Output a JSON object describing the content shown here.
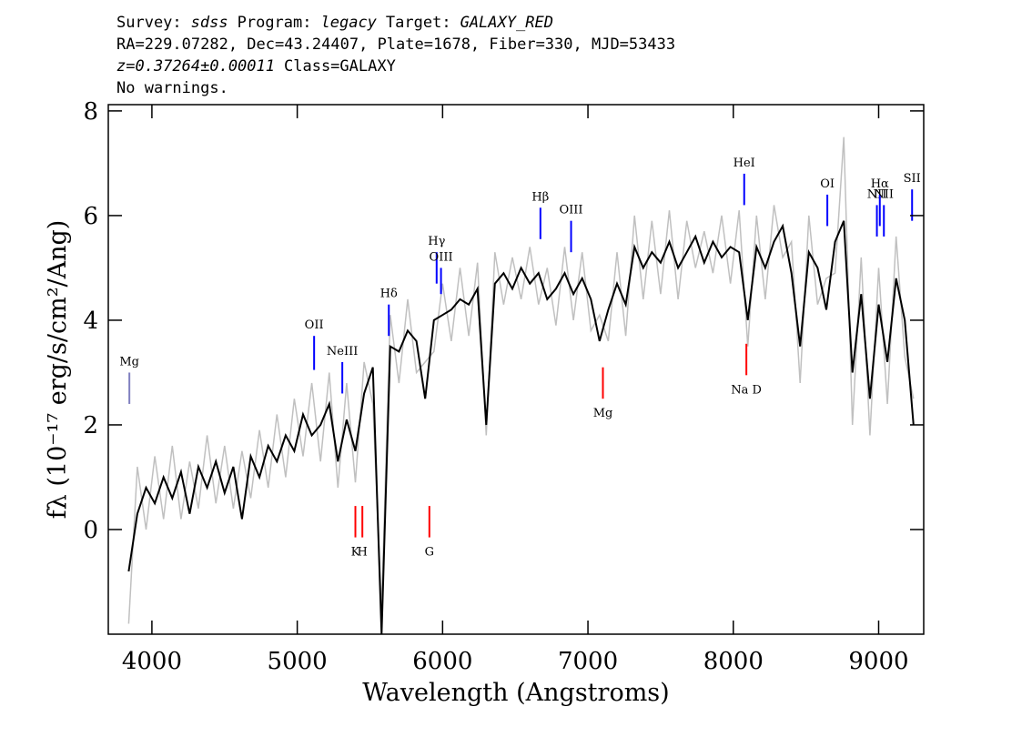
{
  "chart_data": {
    "type": "line",
    "header": [
      {
        "parts": [
          "Survey:",
          "sdss",
          "Program:",
          "legacy",
          "Target:",
          "GALAXY_RED"
        ],
        "italic": [
          false,
          true,
          false,
          true,
          false,
          true
        ]
      },
      {
        "parts": [
          "RA=229.07282, Dec=43.24407, Plate=1678, Fiber=330, MJD=53433"
        ],
        "italic": [
          false
        ]
      },
      {
        "parts": [
          "z=0.37264±0.00011",
          "Class=GALAXY"
        ],
        "italic": [
          true,
          false
        ]
      },
      {
        "parts": [
          "No warnings."
        ],
        "italic": [
          false
        ]
      }
    ],
    "xlabel": "Wavelength (Angstroms)",
    "ylabel": "fλ (10⁻¹⁷ erg/s/cm²/Ang)",
    "xlim": [
      3700,
      9310
    ],
    "ylim": [
      -2,
      8.12
    ],
    "xticks": [
      4000,
      5000,
      6000,
      7000,
      8000,
      9000
    ],
    "yticks": [
      0,
      2,
      4,
      6,
      8
    ],
    "x": [
      3840,
      3900,
      3960,
      4020,
      4080,
      4140,
      4200,
      4260,
      4320,
      4380,
      4440,
      4500,
      4560,
      4620,
      4680,
      4740,
      4800,
      4860,
      4920,
      4980,
      5040,
      5100,
      5160,
      5220,
      5280,
      5340,
      5400,
      5460,
      5520,
      5580,
      5640,
      5700,
      5760,
      5820,
      5880,
      5940,
      6000,
      6060,
      6120,
      6180,
      6240,
      6300,
      6360,
      6420,
      6480,
      6540,
      6600,
      6660,
      6720,
      6780,
      6840,
      6900,
      6960,
      7020,
      7080,
      7140,
      7200,
      7260,
      7320,
      7380,
      7440,
      7500,
      7560,
      7620,
      7680,
      7740,
      7800,
      7860,
      7920,
      7980,
      8040,
      8100,
      8160,
      8220,
      8280,
      8340,
      8400,
      8460,
      8520,
      8580,
      8640,
      8700,
      8760,
      8820,
      8880,
      8940,
      9000,
      9060,
      9120,
      9180,
      9240
    ],
    "series": [
      {
        "color": "#c0c0c0",
        "values": [
          -1.8,
          1.2,
          0.0,
          1.4,
          0.2,
          1.6,
          0.2,
          1.3,
          0.4,
          1.8,
          0.5,
          1.6,
          0.4,
          1.5,
          0.6,
          1.9,
          0.8,
          2.2,
          1.0,
          2.5,
          1.4,
          2.8,
          1.3,
          3.0,
          0.8,
          2.8,
          0.9,
          3.2,
          2.4,
          -1.5,
          4.1,
          2.8,
          4.4,
          3.0,
          3.2,
          3.4,
          4.7,
          3.6,
          5.0,
          3.7,
          5.1,
          1.8,
          5.3,
          4.3,
          5.2,
          4.4,
          5.4,
          4.3,
          5.0,
          3.9,
          5.4,
          4.0,
          5.3,
          3.8,
          4.1,
          3.6,
          5.3,
          3.7,
          6.0,
          4.4,
          5.9,
          4.5,
          6.1,
          4.4,
          5.9,
          5.0,
          5.7,
          4.9,
          6.0,
          4.7,
          6.1,
          3.5,
          6.0,
          4.4,
          6.2,
          5.2,
          5.5,
          2.8,
          6.0,
          4.3,
          4.8,
          4.9,
          7.5,
          2.0,
          5.2,
          1.8,
          5.0,
          2.4,
          5.6,
          3.3,
          2.5
        ]
      },
      {
        "color": "#000000",
        "values": [
          -0.8,
          0.3,
          0.8,
          0.5,
          1.0,
          0.6,
          1.1,
          0.3,
          1.2,
          0.8,
          1.3,
          0.7,
          1.2,
          0.2,
          1.4,
          1.0,
          1.6,
          1.3,
          1.8,
          1.5,
          2.2,
          1.8,
          2.0,
          2.4,
          1.3,
          2.1,
          1.5,
          2.6,
          3.1,
          -2.0,
          3.5,
          3.4,
          3.8,
          3.6,
          2.5,
          4.0,
          4.1,
          4.2,
          4.4,
          4.3,
          4.6,
          2.0,
          4.7,
          4.9,
          4.6,
          5.0,
          4.7,
          4.9,
          4.4,
          4.6,
          4.9,
          4.5,
          4.8,
          4.4,
          3.6,
          4.2,
          4.7,
          4.3,
          5.4,
          5.0,
          5.3,
          5.1,
          5.5,
          5.0,
          5.3,
          5.6,
          5.1,
          5.5,
          5.2,
          5.4,
          5.3,
          4.0,
          5.4,
          5.0,
          5.5,
          5.8,
          4.9,
          3.5,
          5.3,
          5.0,
          4.2,
          5.5,
          5.9,
          3.0,
          4.5,
          2.5,
          4.3,
          3.2,
          4.8,
          4.0,
          2.0
        ]
      }
    ],
    "lines": [
      {
        "label": "Mg",
        "wavelength": 3845,
        "color": "#8080c0",
        "ymin": 2.4,
        "ymax": 3.0
      },
      {
        "label": "OII",
        "wavelength": 5116,
        "color": "#0000ff",
        "ymin": 3.05,
        "ymax": 3.7
      },
      {
        "label": "NeIII",
        "wavelength": 5310,
        "color": "#0000ff",
        "ymin": 2.6,
        "ymax": 3.2
      },
      {
        "label": "Hδ",
        "wavelength": 5630,
        "color": "#0000ff",
        "ymin": 3.7,
        "ymax": 4.3
      },
      {
        "label": "Hγ",
        "wavelength": 5959,
        "color": "#0000ff",
        "ymin": 4.7,
        "ymax": 5.3
      },
      {
        "label": "OIII",
        "wavelength": 5989,
        "color": "#0000ff",
        "ymin": 4.5,
        "ymax": 5.0
      },
      {
        "label": "Hβ",
        "wavelength": 6673,
        "color": "#0000ff",
        "ymin": 5.55,
        "ymax": 6.15
      },
      {
        "label": "OIII",
        "wavelength": 6884,
        "color": "#0000ff",
        "ymin": 5.3,
        "ymax": 5.9
      },
      {
        "label": "HeI",
        "wavelength": 8075,
        "color": "#0000ff",
        "ymin": 6.2,
        "ymax": 6.8
      },
      {
        "label": "OI",
        "wavelength": 8647,
        "color": "#0000ff",
        "ymin": 5.8,
        "ymax": 6.4
      },
      {
        "label": "NII",
        "wavelength": 8988,
        "color": "#0000ff",
        "ymin": 5.6,
        "ymax": 6.2
      },
      {
        "label": "Hα",
        "wavelength": 9008,
        "color": "#0000ff",
        "ymin": 5.8,
        "ymax": 6.4
      },
      {
        "label": "NII",
        "wavelength": 9036,
        "color": "#0000ff",
        "ymin": 5.6,
        "ymax": 6.2
      },
      {
        "label": "SII",
        "wavelength": 9230,
        "color": "#0000ff",
        "ymin": 5.9,
        "ymax": 6.5
      },
      {
        "label": "K",
        "wavelength": 5400,
        "color": "#ff0000",
        "ymin": -0.15,
        "ymax": 0.45
      },
      {
        "label": "H",
        "wavelength": 5448,
        "color": "#ff0000",
        "ymin": -0.15,
        "ymax": 0.45
      },
      {
        "label": "G",
        "wavelength": 5909,
        "color": "#ff0000",
        "ymin": -0.15,
        "ymax": 0.45
      },
      {
        "label": "Mg",
        "wavelength": 7103,
        "color": "#ff0000",
        "ymin": 2.5,
        "ymax": 3.1
      },
      {
        "label": "Na D",
        "wavelength": 8090,
        "color": "#ff0000",
        "ymin": 2.95,
        "ymax": 3.55
      }
    ]
  }
}
